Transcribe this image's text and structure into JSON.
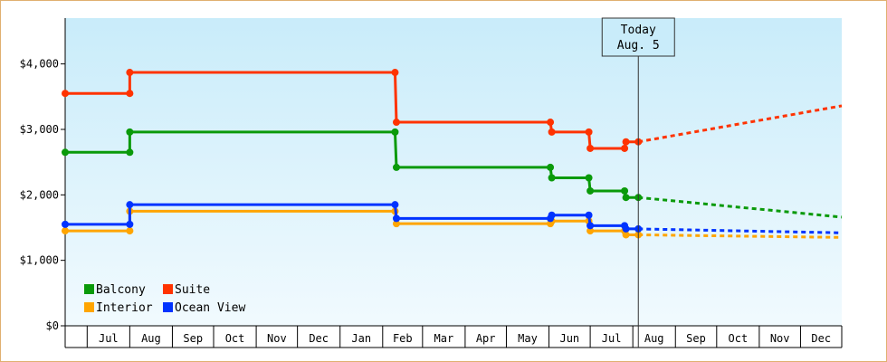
{
  "chart_data": {
    "type": "line",
    "title": "",
    "xlabel": "",
    "ylabel": "",
    "ylim": [
      0,
      4700
    ],
    "xlim": [
      "2015-06-15",
      "2016-12-31"
    ],
    "grid": false,
    "legend_position": "bottom-left",
    "yticks": [
      {
        "value": 0,
        "label": "$0"
      },
      {
        "value": 1000,
        "label": "$1,000"
      },
      {
        "value": 2000,
        "label": "$2,000"
      },
      {
        "value": 3000,
        "label": "$3,000"
      },
      {
        "value": 4000,
        "label": "$4,000"
      }
    ],
    "month_labels": [
      {
        "label": "Jul",
        "start": "2015-07-01",
        "end": "2015-08-01"
      },
      {
        "label": "Aug",
        "start": "2015-08-01",
        "end": "2015-09-01"
      },
      {
        "label": "Sep",
        "start": "2015-09-01",
        "end": "2015-10-01"
      },
      {
        "label": "Oct",
        "start": "2015-10-01",
        "end": "2015-11-01"
      },
      {
        "label": "Nov",
        "start": "2015-11-01",
        "end": "2015-12-01"
      },
      {
        "label": "Dec",
        "start": "2015-12-01",
        "end": "2016-01-01"
      },
      {
        "label": "Jan",
        "start": "2016-01-01",
        "end": "2016-02-01"
      },
      {
        "label": "Feb",
        "start": "2016-02-01",
        "end": "2016-03-01"
      },
      {
        "label": "Mar",
        "start": "2016-03-01",
        "end": "2016-04-01"
      },
      {
        "label": "Apr",
        "start": "2016-04-01",
        "end": "2016-05-01"
      },
      {
        "label": "May",
        "start": "2016-05-01",
        "end": "2016-06-01"
      },
      {
        "label": "Jun",
        "start": "2016-06-01",
        "end": "2016-07-01"
      },
      {
        "label": "Jul",
        "start": "2016-07-01",
        "end": "2016-08-01"
      },
      {
        "label": "Aug",
        "start": "2016-08-01",
        "end": "2016-09-01"
      },
      {
        "label": "Sep",
        "start": "2016-09-01",
        "end": "2016-10-01"
      },
      {
        "label": "Oct",
        "start": "2016-10-01",
        "end": "2016-11-01"
      },
      {
        "label": "Nov",
        "start": "2016-11-01",
        "end": "2016-12-01"
      },
      {
        "label": "Dec",
        "start": "2016-12-01",
        "end": "2016-12-31"
      }
    ],
    "today": {
      "date": "2016-08-05",
      "label_line1": "Today",
      "label_line2": "Aug. 5"
    },
    "series": [
      {
        "name": "Balcony",
        "color": "#0a9a0a",
        "points": [
          [
            "2015-06-15",
            2650
          ],
          [
            "2015-08-01",
            2650
          ],
          [
            "2015-08-01",
            2960
          ],
          [
            "2016-02-10",
            2960
          ],
          [
            "2016-02-11",
            2420
          ],
          [
            "2016-06-02",
            2420
          ],
          [
            "2016-06-03",
            2260
          ],
          [
            "2016-06-30",
            2260
          ],
          [
            "2016-07-01",
            2060
          ],
          [
            "2016-07-26",
            2060
          ],
          [
            "2016-07-27",
            1960
          ],
          [
            "2016-08-05",
            1960
          ]
        ],
        "markers": [
          [
            "2015-06-15",
            2650
          ],
          [
            "2015-08-01",
            2650
          ],
          [
            "2015-08-01",
            2960
          ],
          [
            "2016-02-10",
            2960
          ],
          [
            "2016-02-11",
            2420
          ],
          [
            "2016-06-02",
            2420
          ],
          [
            "2016-06-03",
            2260
          ],
          [
            "2016-06-30",
            2260
          ],
          [
            "2016-07-01",
            2060
          ],
          [
            "2016-07-26",
            2060
          ],
          [
            "2016-07-27",
            1960
          ],
          [
            "2016-08-05",
            1960
          ]
        ],
        "forecast": [
          [
            "2016-08-05",
            1960
          ],
          [
            "2016-12-31",
            1660
          ]
        ]
      },
      {
        "name": "Suite",
        "color": "#ff3300",
        "points": [
          [
            "2015-06-15",
            3550
          ],
          [
            "2015-08-01",
            3550
          ],
          [
            "2015-08-01",
            3870
          ],
          [
            "2016-02-10",
            3870
          ],
          [
            "2016-02-11",
            3110
          ],
          [
            "2016-06-02",
            3110
          ],
          [
            "2016-06-03",
            2960
          ],
          [
            "2016-06-30",
            2960
          ],
          [
            "2016-07-01",
            2710
          ],
          [
            "2016-07-26",
            2710
          ],
          [
            "2016-07-27",
            2810
          ],
          [
            "2016-08-05",
            2810
          ]
        ],
        "markers": [
          [
            "2015-06-15",
            3550
          ],
          [
            "2015-08-01",
            3550
          ],
          [
            "2015-08-01",
            3870
          ],
          [
            "2016-02-10",
            3870
          ],
          [
            "2016-02-11",
            3110
          ],
          [
            "2016-06-02",
            3110
          ],
          [
            "2016-06-03",
            2960
          ],
          [
            "2016-06-30",
            2960
          ],
          [
            "2016-07-01",
            2710
          ],
          [
            "2016-07-26",
            2710
          ],
          [
            "2016-07-27",
            2810
          ],
          [
            "2016-08-05",
            2810
          ]
        ],
        "forecast": [
          [
            "2016-08-05",
            2810
          ],
          [
            "2016-12-31",
            3360
          ]
        ]
      },
      {
        "name": "Interior",
        "color": "#ffa500",
        "points": [
          [
            "2015-06-15",
            1450
          ],
          [
            "2015-08-01",
            1450
          ],
          [
            "2015-08-01",
            1750
          ],
          [
            "2016-02-10",
            1750
          ],
          [
            "2016-02-11",
            1560
          ],
          [
            "2016-06-02",
            1560
          ],
          [
            "2016-06-03",
            1600
          ],
          [
            "2016-06-30",
            1600
          ],
          [
            "2016-07-01",
            1450
          ],
          [
            "2016-07-26",
            1450
          ],
          [
            "2016-07-27",
            1390
          ],
          [
            "2016-08-05",
            1390
          ]
        ],
        "markers": [
          [
            "2015-06-15",
            1450
          ],
          [
            "2015-08-01",
            1450
          ],
          [
            "2015-08-01",
            1750
          ],
          [
            "2016-02-10",
            1750
          ],
          [
            "2016-02-11",
            1560
          ],
          [
            "2016-06-02",
            1560
          ],
          [
            "2016-06-03",
            1600
          ],
          [
            "2016-06-30",
            1600
          ],
          [
            "2016-07-01",
            1450
          ],
          [
            "2016-07-26",
            1450
          ],
          [
            "2016-07-27",
            1390
          ],
          [
            "2016-08-05",
            1390
          ]
        ],
        "forecast": [
          [
            "2016-08-05",
            1390
          ],
          [
            "2016-12-31",
            1350
          ]
        ]
      },
      {
        "name": "Ocean View",
        "color": "#0033ff",
        "points": [
          [
            "2015-06-15",
            1550
          ],
          [
            "2015-08-01",
            1550
          ],
          [
            "2015-08-01",
            1850
          ],
          [
            "2016-02-10",
            1850
          ],
          [
            "2016-02-11",
            1640
          ],
          [
            "2016-06-02",
            1640
          ],
          [
            "2016-06-03",
            1690
          ],
          [
            "2016-06-30",
            1690
          ],
          [
            "2016-07-01",
            1530
          ],
          [
            "2016-07-26",
            1530
          ],
          [
            "2016-07-27",
            1480
          ],
          [
            "2016-08-05",
            1480
          ]
        ],
        "markers": [
          [
            "2015-06-15",
            1550
          ],
          [
            "2015-08-01",
            1550
          ],
          [
            "2015-08-01",
            1850
          ],
          [
            "2016-02-10",
            1850
          ],
          [
            "2016-02-11",
            1640
          ],
          [
            "2016-06-02",
            1640
          ],
          [
            "2016-06-03",
            1690
          ],
          [
            "2016-06-30",
            1690
          ],
          [
            "2016-07-01",
            1530
          ],
          [
            "2016-07-26",
            1530
          ],
          [
            "2016-07-27",
            1480
          ],
          [
            "2016-08-05",
            1480
          ]
        ],
        "forecast": [
          [
            "2016-08-05",
            1480
          ],
          [
            "2016-12-31",
            1420
          ]
        ]
      }
    ],
    "legend": [
      {
        "name": "Balcony",
        "color": "#0a9a0a"
      },
      {
        "name": "Suite",
        "color": "#ff3300"
      },
      {
        "name": "Interior",
        "color": "#ffa500"
      },
      {
        "name": "Ocean View",
        "color": "#0033ff"
      }
    ]
  }
}
